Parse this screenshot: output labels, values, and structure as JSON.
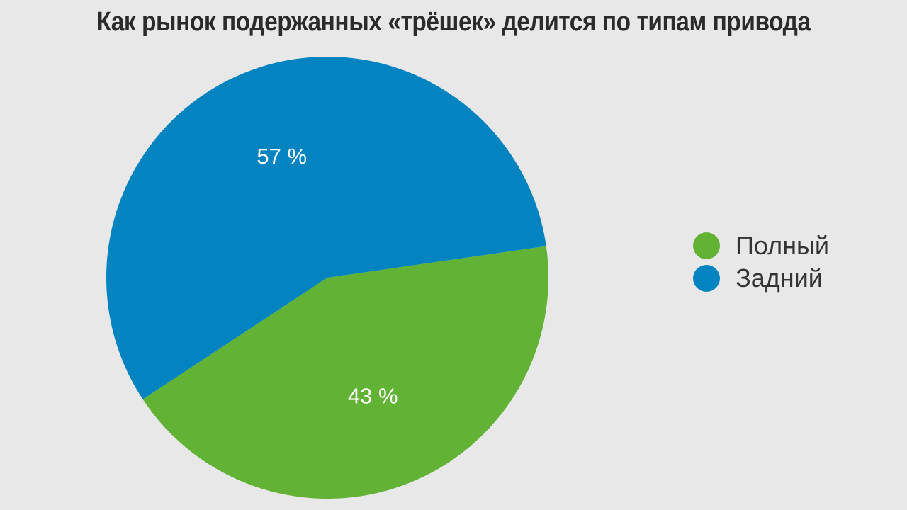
{
  "chart_data": {
    "type": "pie",
    "title": "Как рынок подержанных «трёшек» делится по типам привода",
    "slices": [
      {
        "name": "Полный",
        "value": 43,
        "label": "43 %",
        "color": "#62b236"
      },
      {
        "name": "Задний",
        "value": 57,
        "label": "57 %",
        "color": "#0383bf"
      }
    ],
    "legend_position": "right"
  },
  "colors": {
    "background": "#e8e8e8",
    "title": "#2b2b2b",
    "slice_label": "#ffffff",
    "legend_text": "#333333"
  }
}
